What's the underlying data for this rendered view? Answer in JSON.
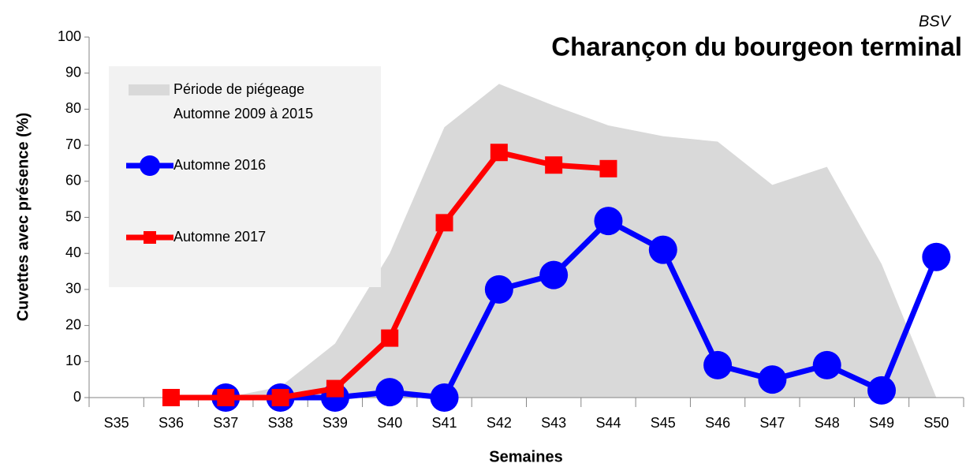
{
  "logo": "BSV",
  "chart_data": {
    "type": "line",
    "title": "Charançon du bourgeon terminal",
    "y_label": "Cuvettes avec présence (%)",
    "x_label": "Semaines",
    "categories": [
      "S35",
      "S36",
      "S37",
      "S38",
      "S39",
      "S40",
      "S41",
      "S42",
      "S43",
      "S44",
      "S45",
      "S46",
      "S47",
      "S48",
      "S49",
      "S50"
    ],
    "series": [
      {
        "name": "Période de piégeage\nAutomne 2009 à 2015",
        "kind": "area",
        "color": "#d9d9d9",
        "values": [
          null,
          0,
          0,
          3,
          15,
          40,
          75,
          87,
          81,
          75.5,
          72.5,
          71,
          59,
          64,
          37,
          0
        ]
      },
      {
        "name": "Automne 2016",
        "kind": "line",
        "marker": "circle",
        "color": "#0000ff",
        "values": [
          null,
          null,
          0,
          0,
          0,
          1.5,
          0,
          30,
          34,
          49,
          41,
          9,
          5,
          9,
          2,
          39
        ]
      },
      {
        "name": "Automne 2017",
        "kind": "line",
        "marker": "square",
        "color": "#ff0000",
        "values": [
          null,
          0,
          0,
          0,
          2.5,
          16.5,
          48.5,
          68,
          64.5,
          63.5,
          null,
          null,
          null,
          null,
          null,
          null
        ]
      }
    ],
    "ylim": [
      0,
      100
    ],
    "yticks": [
      0,
      10,
      20,
      30,
      40,
      50,
      60,
      70,
      80,
      90,
      100
    ],
    "grid": false
  }
}
